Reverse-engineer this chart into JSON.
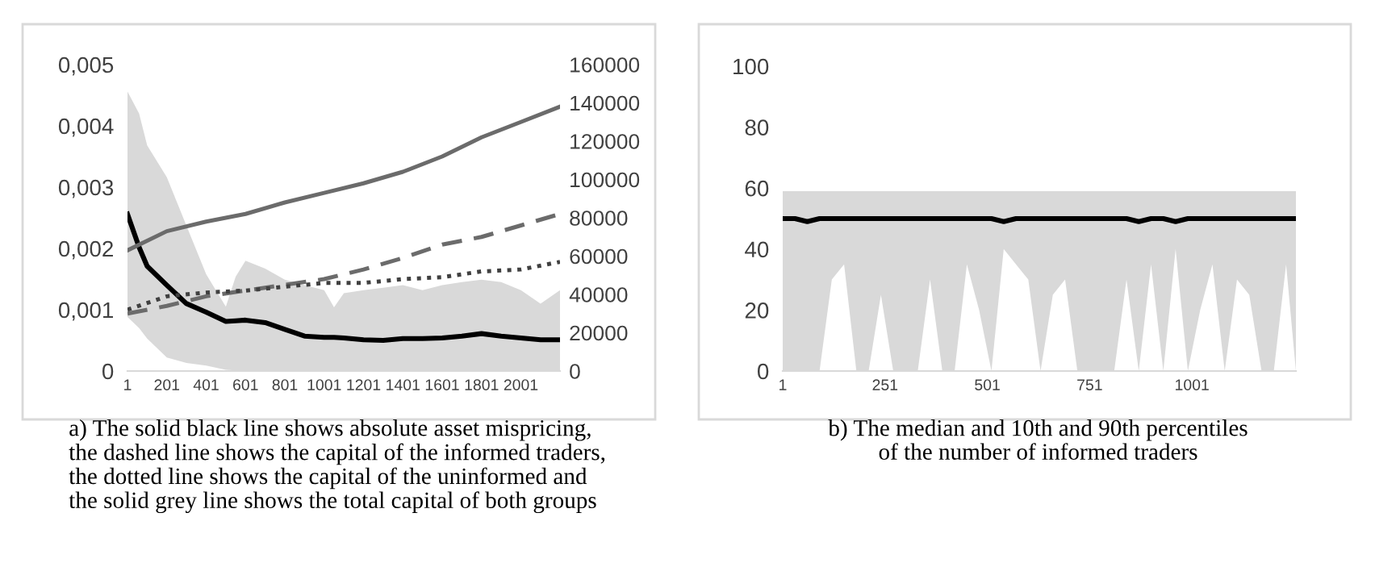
{
  "chart_data": [
    {
      "type": "line",
      "xlim": [
        1,
        2200
      ],
      "xticks": [
        1,
        201,
        401,
        601,
        801,
        1001,
        1201,
        1401,
        1601,
        1801,
        2001
      ],
      "ylim": [
        0,
        0.005
      ],
      "yticks": [
        0,
        {
          "value": 0.001,
          "label": "0,001"
        },
        {
          "value": 0.002,
          "label": "0,002"
        },
        {
          "value": 0.003,
          "label": "0,003"
        },
        {
          "value": 0.004,
          "label": "0,004"
        },
        {
          "value": 0.005,
          "label": "0,005"
        }
      ],
      "y2lim": [
        0,
        160000
      ],
      "y2ticks": [
        0,
        20000,
        40000,
        60000,
        80000,
        100000,
        120000,
        140000,
        160000
      ],
      "grid": false,
      "legend": false,
      "annotations": [
        "a) The solid black line shows absolute asset mispricing,\nthe dashed line shows the capital of the informed traders,\nthe dotted line shows the capital of the uninformed and\nthe solid grey line shows the total capital of both groups"
      ],
      "series": [
        {
          "color": "#000000",
          "line_style": "solid",
          "x": [
            1,
            60,
            101,
            201,
            301,
            401,
            501,
            551,
            601,
            701,
            801,
            901,
            1001,
            1051,
            1101,
            1201,
            1301,
            1401,
            1501,
            1601,
            1701,
            1801,
            1901,
            2001,
            2101,
            2200
          ],
          "values": [
            0.00256,
            0.00202,
            0.00171,
            0.0014,
            0.0011,
            0.00096,
            0.00081,
            0.00082,
            0.00083,
            0.00079,
            0.00068,
            0.00057,
            0.00055,
            0.00055,
            0.00054,
            0.00051,
            0.0005,
            0.00053,
            0.00053,
            0.00054,
            0.00057,
            0.00061,
            0.00057,
            0.00054,
            0.00051,
            0.00051
          ],
          "upper": [
            0.00456,
            0.0042,
            0.00368,
            0.00316,
            0.00237,
            0.00158,
            0.00105,
            0.00154,
            0.0018,
            0.00167,
            0.00149,
            0.0014,
            0.00132,
            0.00104,
            0.00127,
            0.00132,
            0.00136,
            0.0014,
            0.00132,
            0.0014,
            0.00145,
            0.00149,
            0.00145,
            0.00132,
            0.0011,
            0.00132
          ],
          "lower": [
            0.00088,
            0.0007,
            0.00053,
            0.00022,
            0.00013,
            9e-05,
            2e-05,
            1e-05,
            0,
            0,
            0,
            0,
            0,
            0,
            0,
            0,
            0,
            0,
            0,
            0,
            0,
            0,
            0,
            0,
            0,
            0
          ]
        },
        {
          "color": "#6b6b6b",
          "line_style": "solid",
          "axis": "y2",
          "x": [
            1,
            201,
            401,
            601,
            801,
            1001,
            1201,
            1401,
            1601,
            1801,
            2001,
            2200
          ],
          "values": [
            63000,
            73000,
            78000,
            82000,
            88000,
            93000,
            98000,
            104000,
            112000,
            122000,
            130000,
            138000
          ]
        },
        {
          "color": "#6b6b6b",
          "line_style": "dashed",
          "axis": "y2",
          "x": [
            1,
            201,
            401,
            601,
            801,
            1001,
            1201,
            1401,
            1601,
            1801,
            2001,
            2200
          ],
          "values": [
            30000,
            34000,
            39000,
            42000,
            45000,
            48000,
            53000,
            59000,
            66000,
            70000,
            76000,
            82000
          ]
        },
        {
          "color": "#404040",
          "line_style": "dotted",
          "axis": "y2",
          "x": [
            1,
            201,
            401,
            601,
            801,
            1001,
            1201,
            1401,
            1601,
            1801,
            2001,
            2200
          ],
          "values": [
            32000,
            39000,
            41000,
            42000,
            44000,
            46000,
            46000,
            48000,
            49000,
            52000,
            53000,
            57000
          ]
        }
      ]
    },
    {
      "type": "line",
      "xlim": [
        1,
        1255
      ],
      "xticks": [
        1,
        251,
        501,
        751,
        1001
      ],
      "ylim": [
        0,
        100
      ],
      "yticks": [
        0,
        20,
        40,
        60,
        80,
        100
      ],
      "grid": false,
      "legend": false,
      "annotations": [
        "b) The median and 10th and 90th percentiles\nof the number of informed traders"
      ],
      "series": [
        {
          "color": "#000000",
          "line_style": "solid",
          "x": [
            1,
            31,
            61,
            91,
            121,
            151,
            181,
            211,
            241,
            271,
            301,
            331,
            361,
            391,
            421,
            451,
            481,
            511,
            541,
            571,
            601,
            631,
            661,
            691,
            721,
            751,
            781,
            811,
            841,
            871,
            901,
            931,
            961,
            991,
            1021,
            1051,
            1081,
            1111,
            1141,
            1171,
            1201,
            1231,
            1255
          ],
          "values": [
            50,
            50,
            49,
            50,
            50,
            50,
            50,
            50,
            50,
            50,
            50,
            50,
            50,
            50,
            50,
            50,
            50,
            50,
            49,
            50,
            50,
            50,
            50,
            50,
            50,
            50,
            50,
            50,
            50,
            49,
            50,
            50,
            49,
            50,
            50,
            50,
            50,
            50,
            50,
            50,
            50,
            50,
            50
          ],
          "upper": [
            59,
            59,
            59,
            59,
            59,
            59,
            59,
            59,
            59,
            59,
            59,
            59,
            59,
            59,
            59,
            59,
            59,
            59,
            59,
            59,
            59,
            59,
            59,
            59,
            59,
            59,
            59,
            59,
            59,
            59,
            59,
            59,
            59,
            59,
            59,
            59,
            59,
            59,
            59,
            59,
            59,
            59,
            59
          ],
          "lower": [
            0,
            0,
            0,
            0,
            30,
            35,
            0,
            0,
            25,
            0,
            0,
            0,
            30,
            0,
            0,
            35,
            20,
            0,
            40,
            35,
            30,
            0,
            25,
            30,
            0,
            0,
            0,
            0,
            30,
            0,
            35,
            0,
            40,
            0,
            20,
            35,
            0,
            30,
            25,
            0,
            0,
            35,
            0
          ]
        }
      ]
    }
  ]
}
